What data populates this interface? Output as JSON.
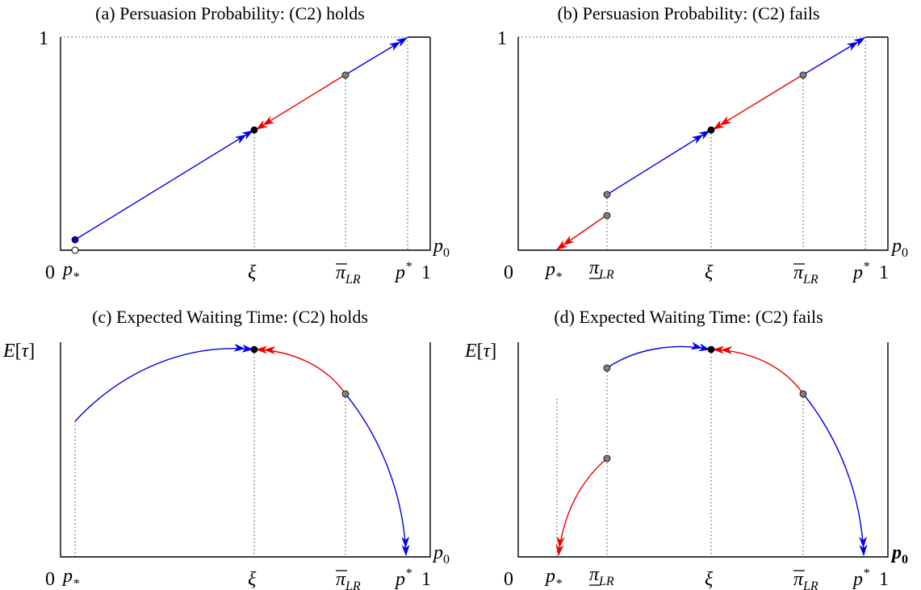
{
  "colors": {
    "blue": "#0000ee",
    "red": "#ee0000",
    "gray": "#808080",
    "black": "#000000"
  },
  "panels": [
    {
      "id": "a",
      "title": "(a) Persuasion Probability: (C2) holds",
      "y_label": "1",
      "x_var": "p0",
      "ticks": [
        {
          "name": "zero",
          "text": "0"
        },
        {
          "name": "p-star-lower",
          "text": "p",
          "sub": "*"
        },
        {
          "name": "xi",
          "text": "ξ"
        },
        {
          "name": "pi-bar-lr",
          "text": "π",
          "sub": "LR",
          "bar": "over"
        },
        {
          "name": "p-star-upper",
          "text": "p",
          "sup": "*"
        },
        {
          "name": "one",
          "text": "1"
        }
      ]
    },
    {
      "id": "b",
      "title": "(b) Persuasion Probability: (C2) fails",
      "y_label": "1",
      "x_var": "p0",
      "ticks": [
        {
          "name": "zero",
          "text": "0"
        },
        {
          "name": "p-star-lower",
          "text": "p",
          "sub": "*"
        },
        {
          "name": "pi-under-lr",
          "text": "π",
          "sub": "LR",
          "bar": "under"
        },
        {
          "name": "xi",
          "text": "ξ"
        },
        {
          "name": "pi-bar-lr",
          "text": "π",
          "sub": "LR",
          "bar": "over"
        },
        {
          "name": "p-star-upper",
          "text": "p",
          "sup": "*"
        },
        {
          "name": "one",
          "text": "1"
        }
      ]
    },
    {
      "id": "c",
      "title": "(c) Expected Waiting Time: (C2) holds",
      "y_label": "E[τ]",
      "x_var": "p0",
      "ticks": [
        {
          "name": "zero",
          "text": "0"
        },
        {
          "name": "p-star-lower",
          "text": "p",
          "sub": "*"
        },
        {
          "name": "xi",
          "text": "ξ"
        },
        {
          "name": "pi-bar-lr",
          "text": "π",
          "sub": "LR",
          "bar": "over"
        },
        {
          "name": "p-star-upper",
          "text": "p",
          "sup": "*"
        },
        {
          "name": "one",
          "text": "1"
        }
      ]
    },
    {
      "id": "d",
      "title": "(d) Expected Waiting Time: (C2) fails",
      "y_label": "E[τ]",
      "x_var": "p0",
      "ticks": [
        {
          "name": "zero",
          "text": "0"
        },
        {
          "name": "p-star-lower",
          "text": "p",
          "sub": "*"
        },
        {
          "name": "pi-under-lr",
          "text": "π",
          "sub": "LR",
          "bar": "under"
        },
        {
          "name": "xi",
          "text": "ξ"
        },
        {
          "name": "pi-bar-lr",
          "text": "π",
          "sub": "LR",
          "bar": "over"
        },
        {
          "name": "p-star-upper",
          "text": "p",
          "sup": "*"
        },
        {
          "name": "one",
          "text": "1"
        }
      ]
    }
  ]
}
